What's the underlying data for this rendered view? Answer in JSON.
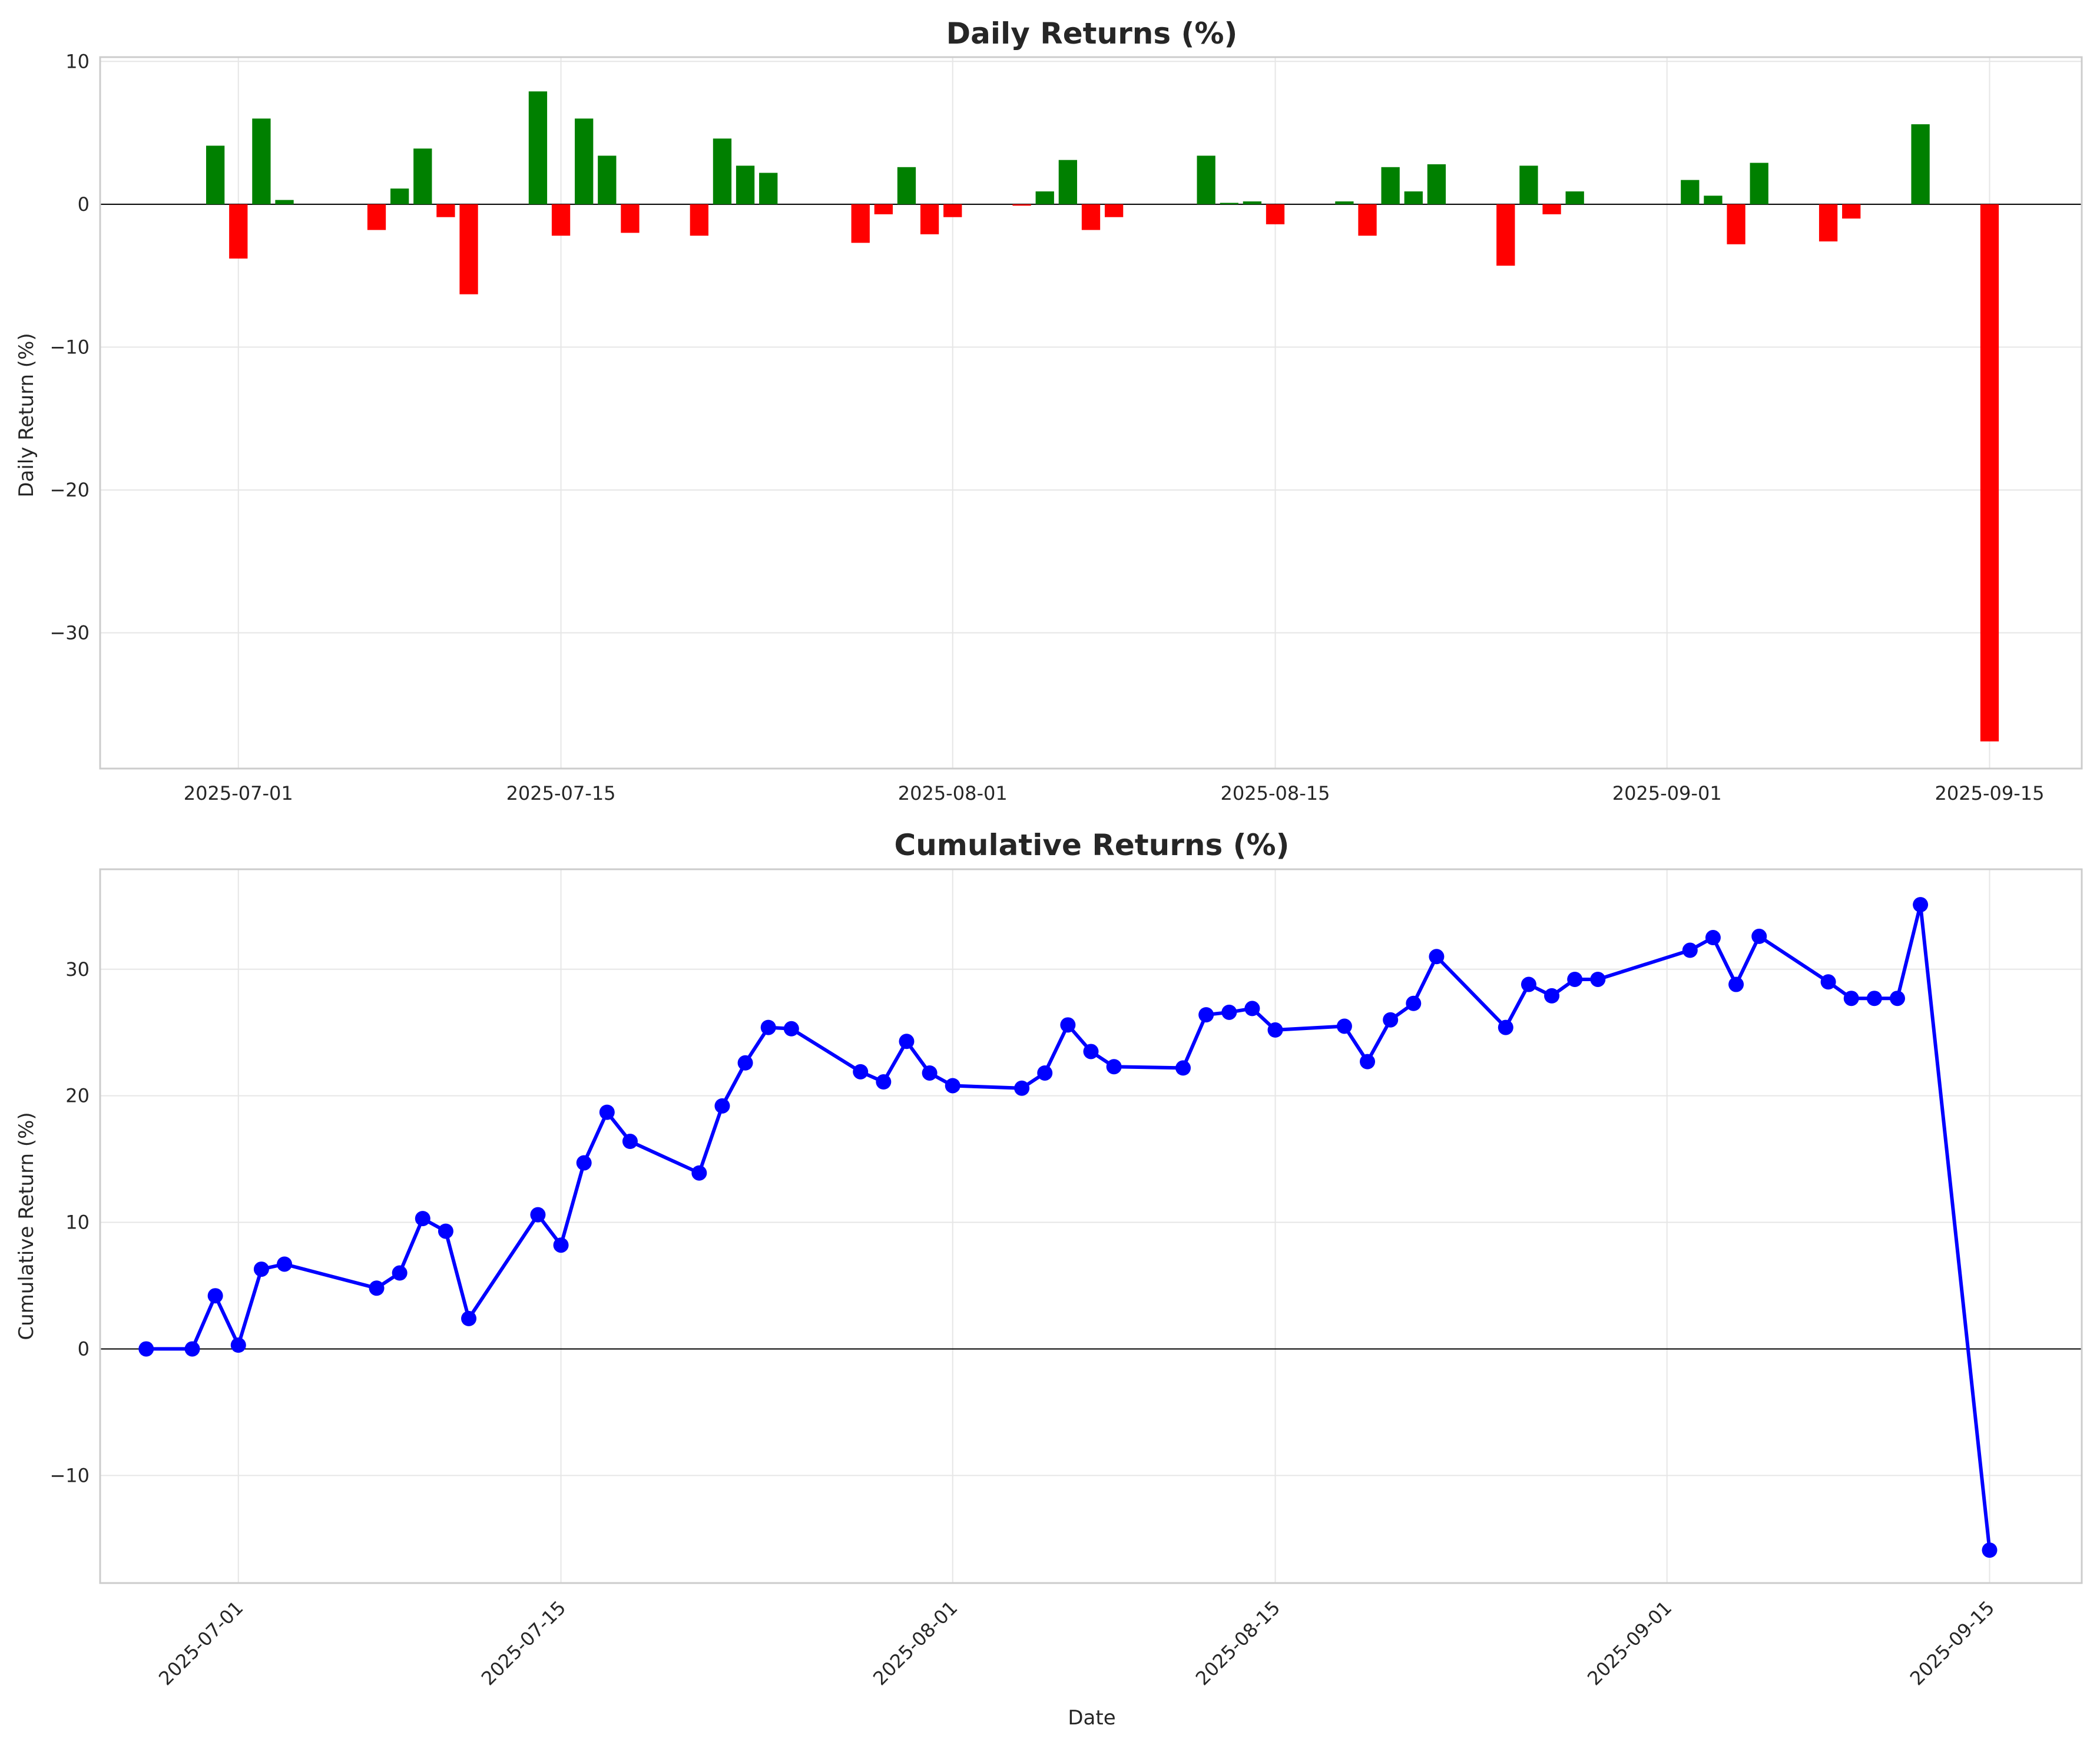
{
  "chart_data": [
    {
      "type": "bar",
      "title": "Daily Returns (%)",
      "xlabel": "",
      "ylabel": "Daily Return (%)",
      "ylim": [
        -39.5,
        10.3
      ],
      "xlim": [
        "2025-06-25",
        "2025-09-19"
      ],
      "yticks": [
        10,
        0,
        -10,
        -20,
        -30
      ],
      "xticks": [
        "2025-07-01",
        "2025-07-15",
        "2025-08-01",
        "2025-08-15",
        "2025-09-01",
        "2025-09-15"
      ],
      "grid": true,
      "colors": {
        "positive": "#008000",
        "negative": "#ff0000"
      },
      "x": [
        "2025-06-30",
        "2025-07-01",
        "2025-07-02",
        "2025-07-03",
        "2025-07-07",
        "2025-07-08",
        "2025-07-09",
        "2025-07-10",
        "2025-07-11",
        "2025-07-14",
        "2025-07-15",
        "2025-07-16",
        "2025-07-17",
        "2025-07-18",
        "2025-07-21",
        "2025-07-22",
        "2025-07-23",
        "2025-07-24",
        "2025-07-28",
        "2025-07-29",
        "2025-07-30",
        "2025-07-31",
        "2025-08-01",
        "2025-08-04",
        "2025-08-05",
        "2025-08-06",
        "2025-08-07",
        "2025-08-08",
        "2025-08-12",
        "2025-08-13",
        "2025-08-14",
        "2025-08-15",
        "2025-08-18",
        "2025-08-19",
        "2025-08-20",
        "2025-08-21",
        "2025-08-22",
        "2025-08-25",
        "2025-08-26",
        "2025-08-27",
        "2025-08-28",
        "2025-09-02",
        "2025-09-03",
        "2025-09-04",
        "2025-09-05",
        "2025-09-08",
        "2025-09-09",
        "2025-09-12",
        "2025-09-15"
      ],
      "values": [
        4.1,
        -3.8,
        6.0,
        0.3,
        -1.8,
        1.1,
        3.9,
        -0.9,
        -6.3,
        7.9,
        -2.2,
        6.0,
        3.4,
        -2.0,
        -2.2,
        4.6,
        2.7,
        2.2,
        -2.7,
        -0.7,
        2.6,
        -2.1,
        -0.9,
        -0.1,
        0.9,
        3.1,
        -1.8,
        -0.9,
        3.4,
        0.1,
        0.2,
        -1.4,
        0.2,
        -2.2,
        2.6,
        0.9,
        2.8,
        -4.3,
        2.7,
        -0.7,
        0.9,
        1.7,
        0.6,
        -2.8,
        2.9,
        -2.6,
        -1.0,
        5.6,
        -37.6
      ]
    },
    {
      "type": "line",
      "title": "Cumulative Returns (%)",
      "xlabel": "Date",
      "ylabel": "Cumulative Return (%)",
      "ylim": [
        -18.5,
        37.9
      ],
      "xlim": [
        "2025-06-25",
        "2025-09-19"
      ],
      "yticks": [
        30,
        20,
        10,
        0,
        -10
      ],
      "xticks": [
        "2025-07-01",
        "2025-07-15",
        "2025-08-01",
        "2025-08-15",
        "2025-09-01",
        "2025-09-15"
      ],
      "grid": true,
      "colors": {
        "line": "#0000ff"
      },
      "x": [
        "2025-06-27",
        "2025-06-29",
        "2025-06-30",
        "2025-07-01",
        "2025-07-02",
        "2025-07-03",
        "2025-07-07",
        "2025-07-08",
        "2025-07-09",
        "2025-07-10",
        "2025-07-11",
        "2025-07-14",
        "2025-07-15",
        "2025-07-16",
        "2025-07-17",
        "2025-07-18",
        "2025-07-21",
        "2025-07-22",
        "2025-07-23",
        "2025-07-24",
        "2025-07-25",
        "2025-07-28",
        "2025-07-29",
        "2025-07-30",
        "2025-07-31",
        "2025-08-01",
        "2025-08-04",
        "2025-08-05",
        "2025-08-06",
        "2025-08-07",
        "2025-08-08",
        "2025-08-11",
        "2025-08-12",
        "2025-08-13",
        "2025-08-14",
        "2025-08-15",
        "2025-08-18",
        "2025-08-19",
        "2025-08-20",
        "2025-08-21",
        "2025-08-22",
        "2025-08-25",
        "2025-08-26",
        "2025-08-27",
        "2025-08-28",
        "2025-08-29",
        "2025-09-02",
        "2025-09-03",
        "2025-09-04",
        "2025-09-05",
        "2025-09-08",
        "2025-09-09",
        "2025-09-10",
        "2025-09-11",
        "2025-09-12",
        "2025-09-15"
      ],
      "values": [
        0.0,
        0.0,
        4.2,
        0.3,
        6.3,
        6.7,
        4.8,
        6.0,
        10.3,
        9.3,
        2.4,
        10.6,
        8.2,
        14.7,
        18.7,
        16.4,
        13.9,
        19.2,
        22.6,
        25.4,
        25.3,
        21.9,
        21.1,
        24.3,
        21.8,
        20.8,
        20.6,
        21.8,
        25.6,
        23.5,
        22.3,
        22.2,
        26.4,
        26.6,
        26.9,
        25.2,
        25.5,
        22.7,
        26.0,
        27.3,
        31.0,
        25.4,
        28.8,
        27.9,
        29.2,
        29.2,
        31.5,
        32.5,
        28.8,
        32.6,
        29.0,
        27.7,
        27.7,
        27.7,
        35.1,
        -15.9
      ]
    }
  ]
}
